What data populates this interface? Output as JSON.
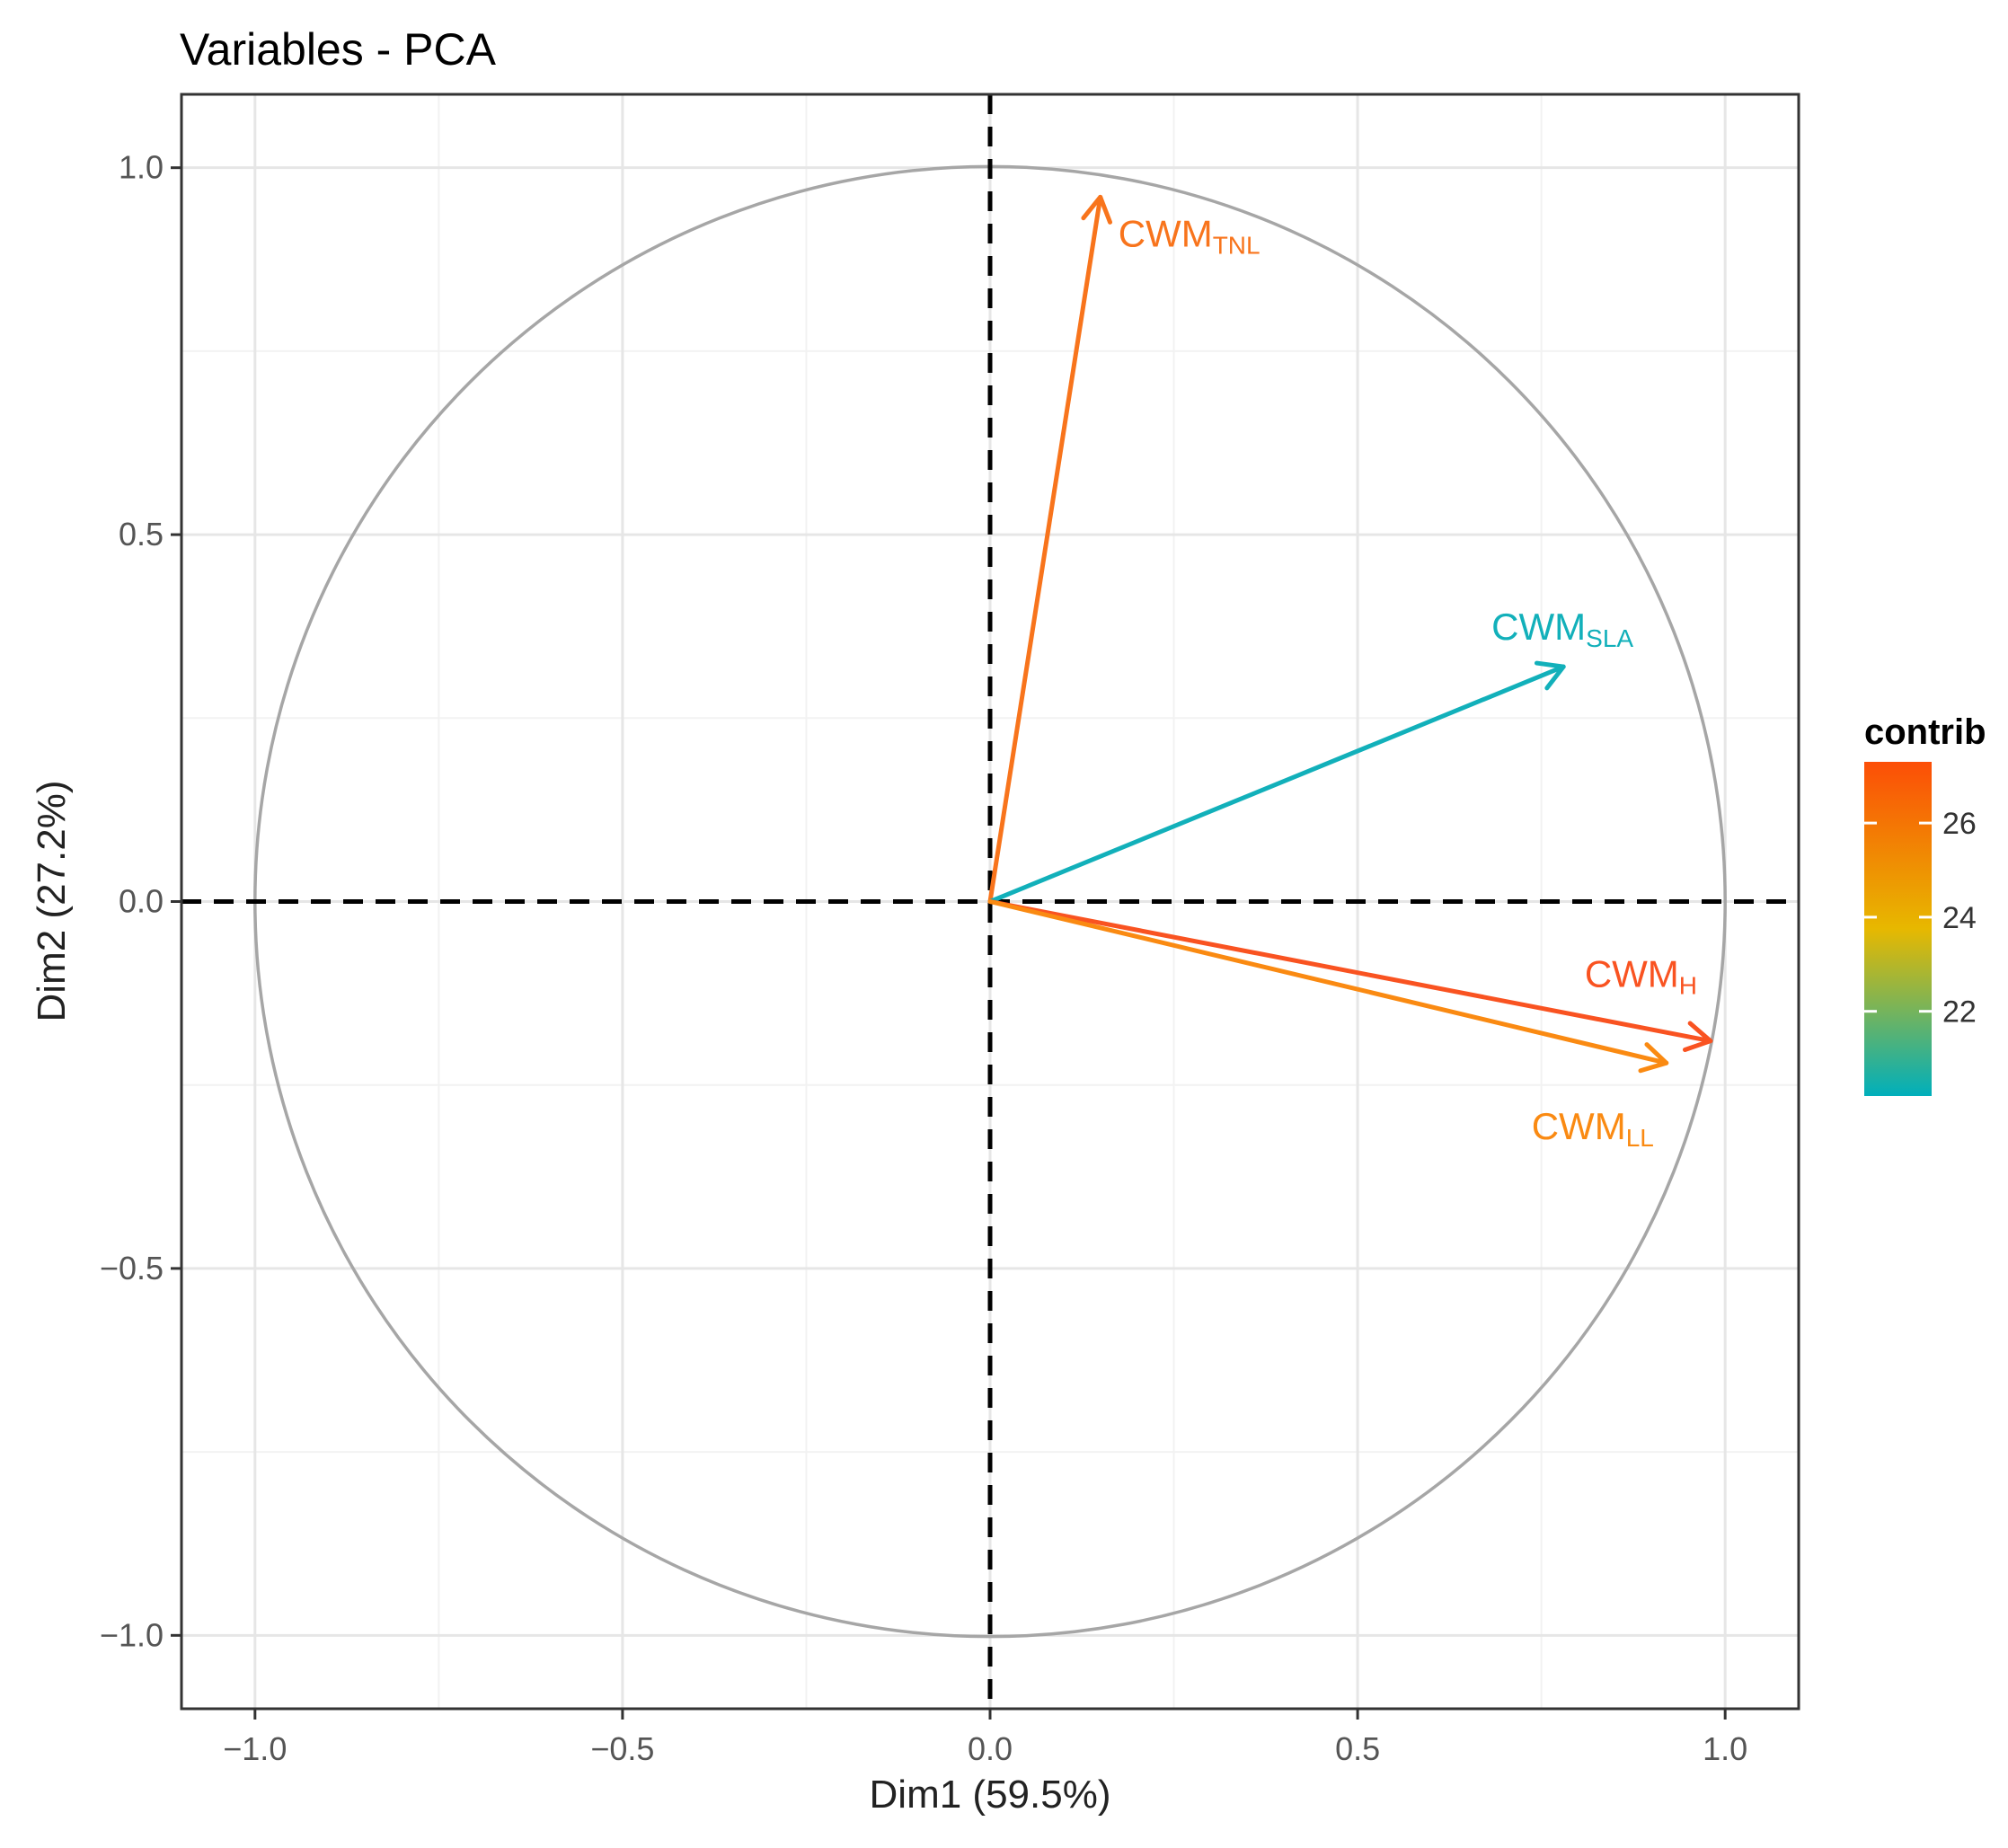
{
  "chart_data": {
    "type": "pca-variable-correlation-circle",
    "title": "Variables - PCA",
    "xlabel": "Dim1 (59.5%)",
    "ylabel": "Dim2 (27.2%)",
    "xlim": [
      -1.1,
      1.1
    ],
    "ylim": [
      -1.1,
      1.1
    ],
    "x_ticks": [
      -1.0,
      -0.5,
      0.0,
      0.5,
      1.0
    ],
    "y_ticks": [
      -1.0,
      -0.5,
      0.0,
      0.5,
      1.0
    ],
    "x_tick_labels": [
      "−1.0",
      "−0.5",
      "0.0",
      "0.5",
      "1.0"
    ],
    "y_tick_labels": [
      "−1.0",
      "−0.5",
      "0.0",
      "0.5",
      "1.0"
    ],
    "grid": true,
    "unit_circle": true,
    "variables": [
      {
        "name": "CWM",
        "subscript": "TNL",
        "x": 0.15,
        "y": 0.96,
        "contrib": 26.4,
        "color": "#F8741C"
      },
      {
        "name": "CWM",
        "subscript": "SLA",
        "x": 0.78,
        "y": 0.32,
        "contrib": 20.2,
        "color": "#12B0BA"
      },
      {
        "name": "CWM",
        "subscript": "H",
        "x": 0.98,
        "y": -0.19,
        "contrib": 27.2,
        "color": "#F95321"
      },
      {
        "name": "CWM",
        "subscript": "LL",
        "x": 0.92,
        "y": -0.22,
        "contrib": 25.9,
        "color": "#FA8A12"
      }
    ],
    "legend": {
      "title": "contrib",
      "position": "right",
      "ticks": [
        22,
        24,
        26
      ],
      "tick_labels": [
        "22",
        "24",
        "26"
      ],
      "range": [
        20.2,
        27.3
      ],
      "gradient_colors": [
        "#00AFBB",
        "#E7B800",
        "#FC4E07"
      ]
    }
  }
}
